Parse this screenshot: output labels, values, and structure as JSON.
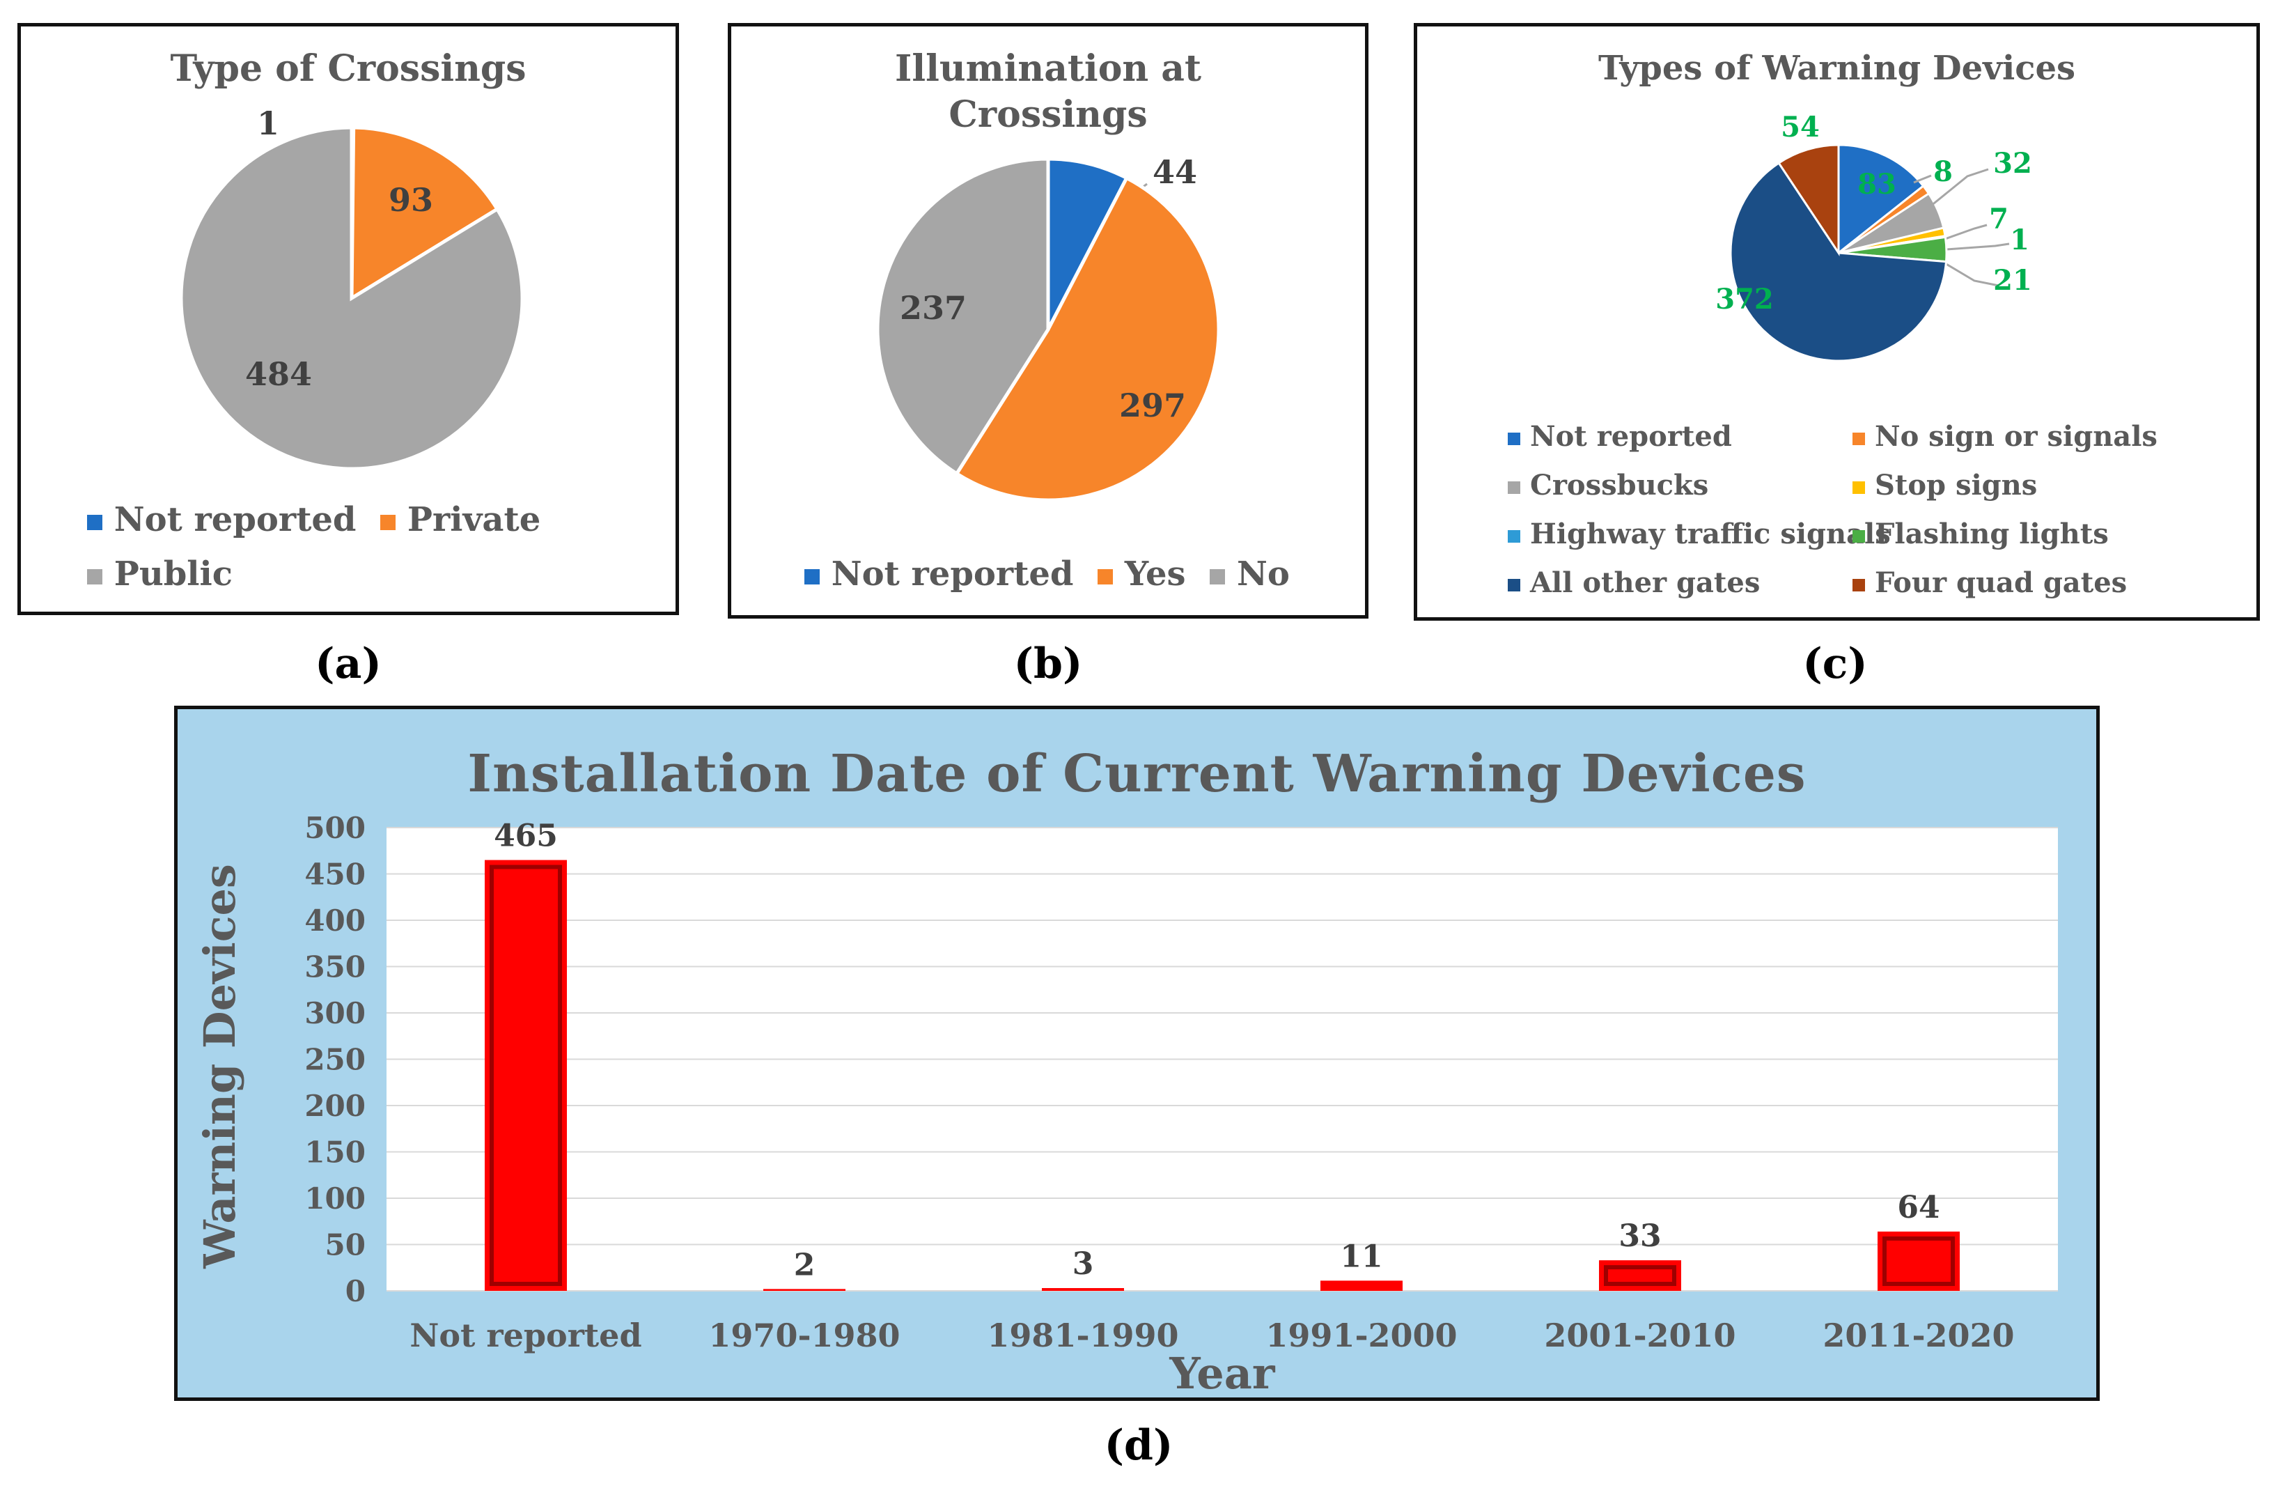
{
  "captions": {
    "a": "(a)",
    "b": "(b)",
    "c": "(c)",
    "d": "(d)"
  },
  "chart_data": [
    {
      "type": "pie",
      "title": "Type of Crossings",
      "labels": [
        "Not reported",
        "Private",
        "Public"
      ],
      "values": [
        1,
        93,
        484
      ],
      "value_labels": [
        "1",
        "93",
        "484"
      ],
      "colors": [
        "#1f6fc5",
        "#f7852a",
        "#a6a6a6"
      ],
      "legend": "bottom"
    },
    {
      "type": "pie",
      "title_lines": [
        "Illumination at",
        "Crossings"
      ],
      "labels": [
        "Not reported",
        "Yes",
        "No"
      ],
      "values": [
        44,
        297,
        237
      ],
      "value_labels": [
        "44",
        "297",
        "237"
      ],
      "colors": [
        "#1f6fc5",
        "#f7852a",
        "#a6a6a6"
      ],
      "legend": "bottom"
    },
    {
      "type": "pie",
      "title": "Types of Warning Devices",
      "labels": [
        "Not reported",
        "No sign or signals",
        "Crossbucks",
        "Stop signs",
        "Highway traffic signals",
        "Flashing lights",
        "All other gates",
        "Four quad gates"
      ],
      "values": [
        83,
        8,
        32,
        7,
        1,
        21,
        372,
        54
      ],
      "value_labels": [
        "83",
        "8",
        "32",
        "7",
        "1",
        "21",
        "372",
        "54"
      ],
      "colors": [
        "#1f6fc5",
        "#f7852a",
        "#a6a6a6",
        "#ffc000",
        "#2e9bd6",
        "#4bae45",
        "#1b4e86",
        "#a9420f"
      ],
      "label_color": "#00b050",
      "legend": "bottom"
    },
    {
      "type": "bar",
      "title": "Installation Date of Current Warning Devices",
      "categories": [
        "Not reported",
        "1970-1980",
        "1981-1990",
        "1991-2000",
        "2001-2010",
        "2011-2020"
      ],
      "values": [
        465,
        2,
        3,
        11,
        33,
        64
      ],
      "value_labels": [
        "465",
        "2",
        "3",
        "11",
        "33",
        "64"
      ],
      "xlabel": "Year",
      "ylabel": "Warning Devices",
      "ylim": [
        0,
        500
      ],
      "yticks": [
        "0",
        "50",
        "100",
        "150",
        "200",
        "250",
        "300",
        "350",
        "400",
        "450",
        "500"
      ],
      "grid": true,
      "bar_color": "#ff0000"
    }
  ]
}
